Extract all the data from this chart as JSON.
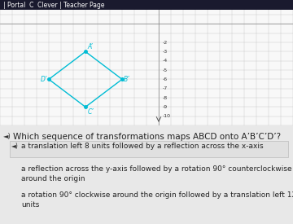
{
  "title_bar_text": "| Portal  C  Clever | Teacher Page",
  "title_bar_bg": "#1a1a2e",
  "title_bar_text_color": "#ffffff",
  "grid_bg": "#f8f8f8",
  "page_bg": "#e8e8e8",
  "diamond_color": "#00bcd4",
  "diamond_points": [
    [
      -6,
      -3
    ],
    [
      -3,
      -6
    ],
    [
      -6,
      -9
    ],
    [
      -9,
      -6
    ]
  ],
  "y_ticks": [
    -2,
    -3,
    -4,
    -5,
    -6,
    -7,
    -8,
    -9,
    -10
  ],
  "y_tick_labels": [
    "-2",
    "-3",
    "-4",
    "-5",
    "-6",
    "-7",
    "-8",
    "-9",
    "-10"
  ],
  "xlim": [
    -13,
    11
  ],
  "ylim": [
    -11,
    1.5
  ],
  "question_text": "Which sequence of transformations maps ABCD onto A’B’C’D’?",
  "answer1": "a translation left 8 units followed by a reflection across the x-axis",
  "answer2": "a reflection across the y-axis followed by a rotation 90° counterclockwise\naround the origin",
  "answer3": "a rotation 90° clockwise around the origin followed by a translation left 12\nunits",
  "text_color": "#222222",
  "answer_font_size": 6.5,
  "question_font_size": 7.5,
  "label_font_size": 5.5,
  "tick_font_size": 4.5
}
